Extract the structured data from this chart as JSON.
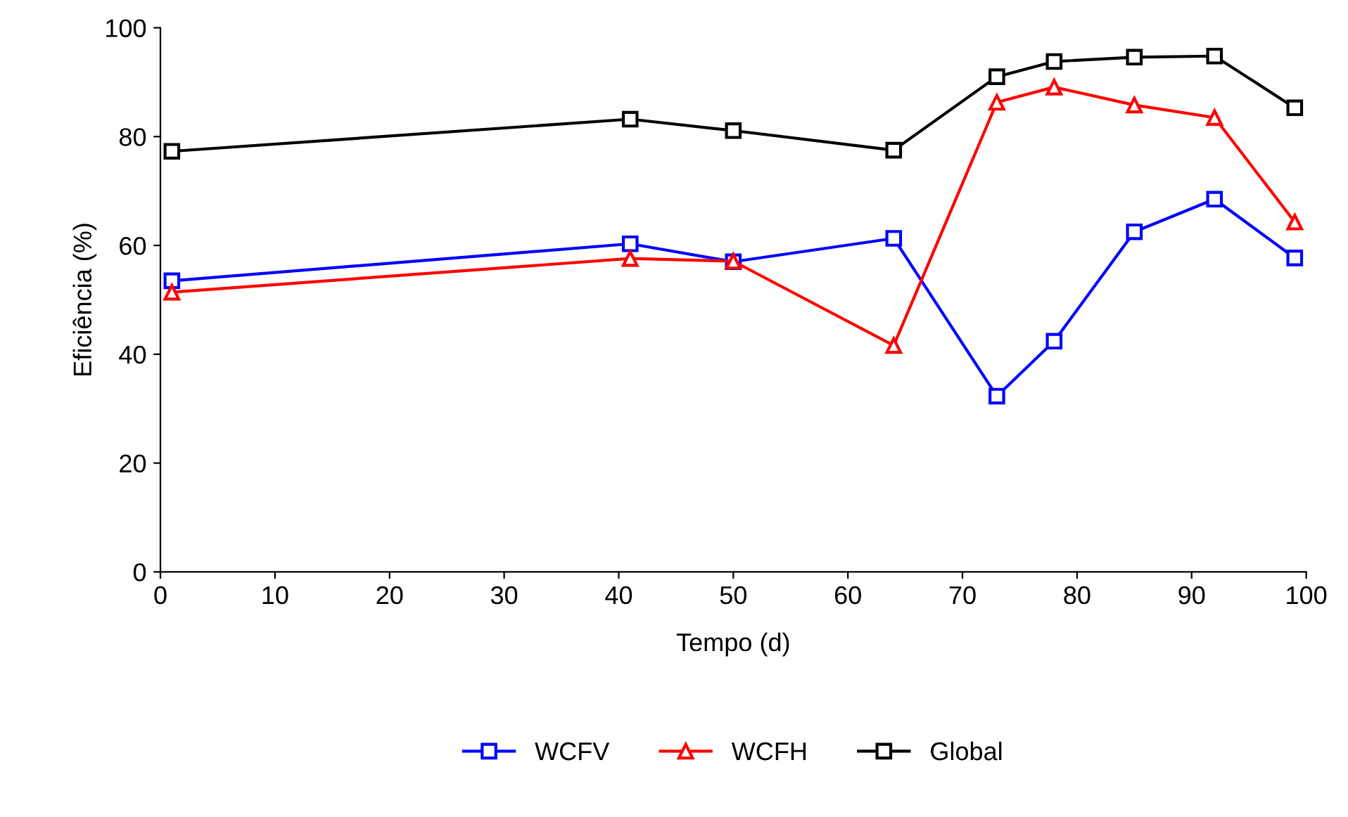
{
  "chart_data": {
    "type": "line",
    "xlabel": "Tempo (d)",
    "ylabel": "Eficiência (%)",
    "x": [
      1,
      41,
      50,
      64,
      73,
      78,
      85,
      92,
      99
    ],
    "xlim": [
      0,
      100
    ],
    "xticks": [
      0,
      10,
      20,
      30,
      40,
      50,
      60,
      70,
      80,
      90,
      100
    ],
    "ylim": [
      0,
      100
    ],
    "yticks": [
      0,
      20,
      40,
      60,
      80,
      100
    ],
    "grid": false,
    "legend": "bottom",
    "series": [
      {
        "name": "WCFV",
        "color": "#0000ff",
        "marker": "square",
        "values": [
          53.5,
          60.3,
          57,
          61.3,
          32.3,
          42.4,
          62.5,
          68.5,
          57.7
        ]
      },
      {
        "name": "WCFH",
        "color": "#ff0000",
        "marker": "triangle",
        "values": [
          51.4,
          57.6,
          57.1,
          41.6,
          86.3,
          89.1,
          85.8,
          83.5,
          64.3
        ]
      },
      {
        "name": "Global",
        "color": "#000000",
        "marker": "square",
        "values": [
          77.3,
          83.2,
          81.1,
          77.5,
          91,
          93.8,
          94.6,
          94.8,
          85.3
        ]
      }
    ]
  }
}
